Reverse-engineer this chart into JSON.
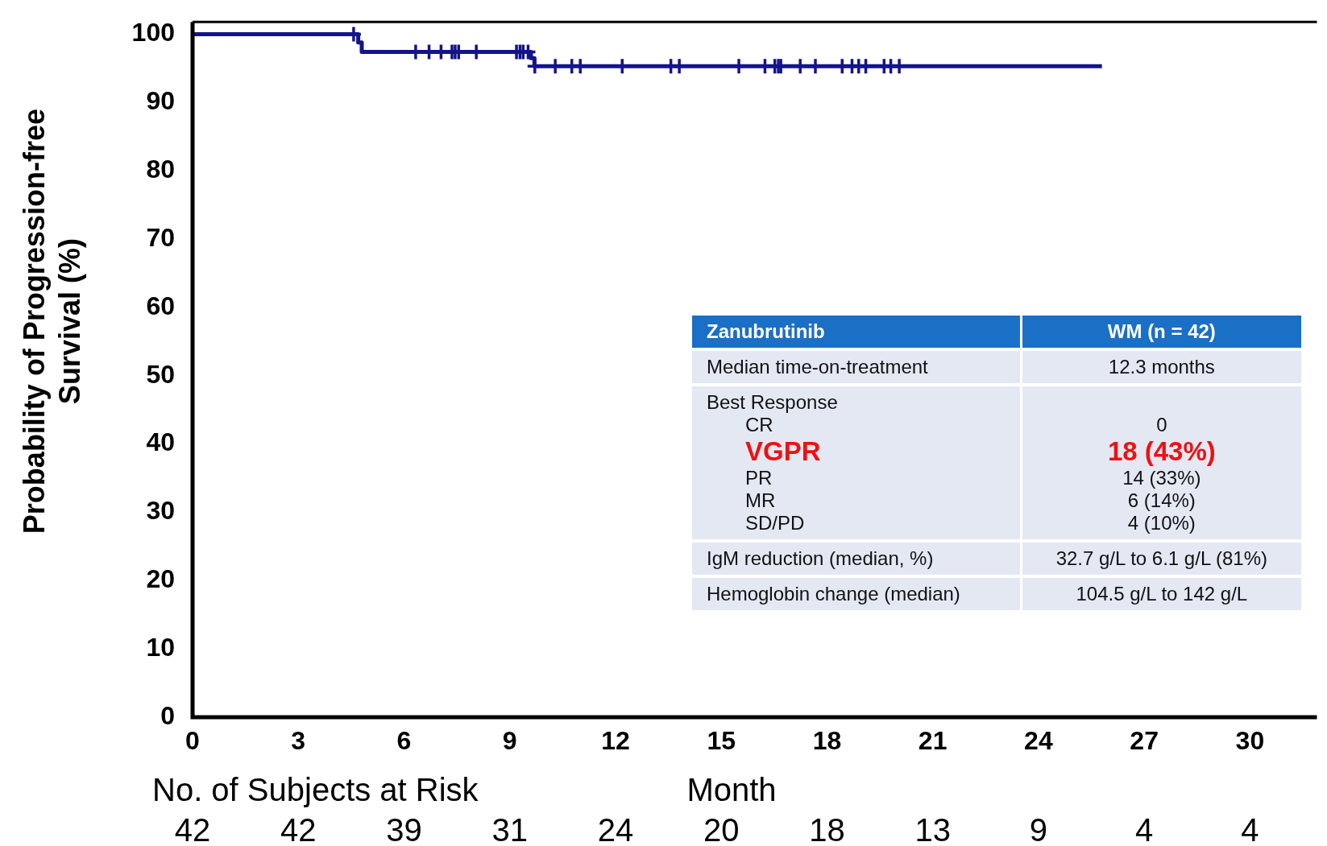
{
  "chart_data": [
    {
      "type": "step",
      "xlabel": "Month",
      "ylabel": "Probability of Progression-free Survival (%)",
      "xlim": [
        0,
        31.9
      ],
      "ylim": [
        0,
        101.8
      ],
      "xticks": [
        0,
        3,
        6,
        9,
        12,
        15,
        18,
        21,
        24,
        27,
        30
      ],
      "yticks": [
        0,
        10,
        20,
        30,
        40,
        50,
        60,
        70,
        80,
        90,
        100
      ],
      "grid": false,
      "legend": false,
      "series": [
        {
          "color": "#14148a",
          "x": [
            0,
            4.7,
            4.8,
            9.6,
            9.7,
            25.8
          ],
          "values": [
            100,
            98.8,
            97.4,
            96.5,
            95.3,
            95.3
          ]
        },
        {
          "type": "scatter",
          "color": "#14148a",
          "marker": "cross",
          "x": [
            4.57,
            6.33,
            6.71,
            7.05,
            7.36,
            7.45,
            7.55,
            8.05,
            9.19,
            9.29,
            9.38,
            9.52,
            9.71,
            10.29,
            10.76,
            11.0,
            12.19,
            13.57,
            13.81,
            15.5,
            16.24,
            16.52,
            16.62,
            16.69,
            17.24,
            17.67,
            18.43,
            18.71,
            18.9,
            19.1,
            19.62,
            19.81,
            20.05
          ],
          "values": [
            100,
            97.4,
            97.4,
            97.4,
            97.4,
            97.4,
            97.4,
            97.4,
            97.4,
            97.4,
            97.4,
            97.4,
            95.3,
            95.3,
            95.3,
            95.3,
            95.3,
            95.3,
            95.3,
            95.3,
            95.3,
            95.3,
            95.3,
            95.3,
            95.3,
            95.3,
            95.3,
            95.3,
            95.3,
            95.3,
            95.3,
            95.3,
            95.3
          ]
        }
      ],
      "annotations": [
        "No. of Subjects at Risk",
        "42",
        "42",
        "39",
        "31",
        "24",
        "20",
        "18",
        "13",
        "9",
        "4",
        "4"
      ]
    },
    {
      "type": "other",
      "annotations": [
        "Zanubrutinib",
        "WM (n = 42)",
        "Median time-on-treatment",
        "12.3 months",
        "Best Response",
        "CR",
        "0",
        "VGPR",
        "18 (43%)",
        "PR",
        "14 (33%)",
        "MR",
        "6 (14%)",
        "SD/PD",
        "4 (10%)",
        "IgM reduction (median, %)",
        "32.7 g/L to 6.1 g/L (81%)",
        "Hemoglobin change (median)",
        "104.5 g/L to 142 g/L"
      ]
    }
  ]
}
